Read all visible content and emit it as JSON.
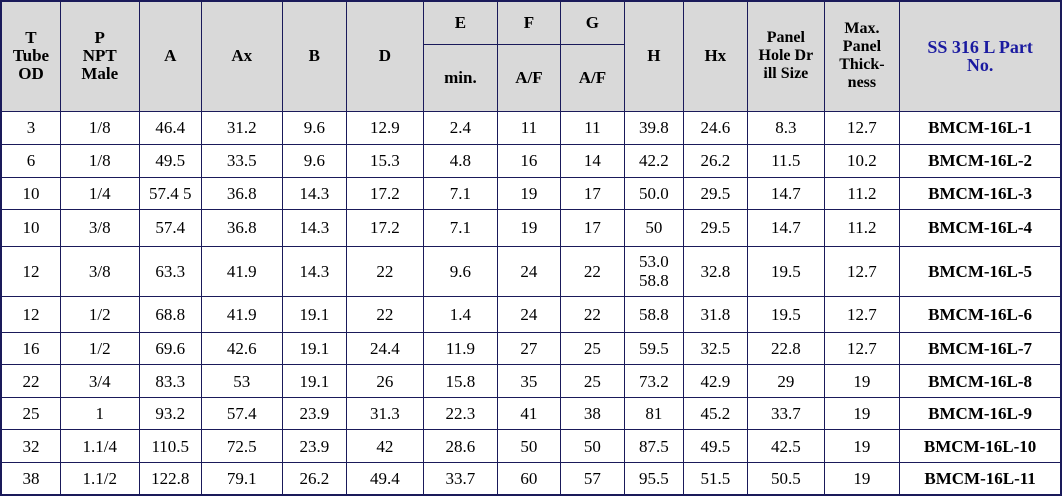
{
  "headers": {
    "t": [
      "T",
      "Tube",
      "OD"
    ],
    "p": [
      "P",
      "NPT",
      "Male"
    ],
    "a": "A",
    "ax": "Ax",
    "b": "B",
    "d": "D",
    "e": "E",
    "e_sub": "min.",
    "f": "F",
    "f_sub": "A/F",
    "g": "G",
    "g_sub": "A/F",
    "h": "H",
    "hx": "Hx",
    "panel_hole": [
      "Panel",
      "Hole Dr",
      "ill Size"
    ],
    "max_panel": [
      "Max.",
      "Panel",
      "Thick-",
      "ness"
    ],
    "part": [
      "SS 316 L Part",
      "No."
    ]
  },
  "rows": [
    {
      "t": "3",
      "p": "1/8",
      "a": "46.4",
      "ax": "31.2",
      "b": "9.6",
      "d": "12.9",
      "e": "2.4",
      "f": "11",
      "g": "11",
      "h": [
        "39.8"
      ],
      "hx": "24.6",
      "hole": "8.3",
      "thick": "12.7",
      "part": "BMCM-16L-1"
    },
    {
      "t": "6",
      "p": "1/8",
      "a": "49.5",
      "ax": "33.5",
      "b": "9.6",
      "d": "15.3",
      "e": "4.8",
      "f": "16",
      "g": "14",
      "h": [
        "42.2"
      ],
      "hx": "26.2",
      "hole": "11.5",
      "thick": "10.2",
      "part": "BMCM-16L-2"
    },
    {
      "t": "10",
      "p": "1/4",
      "a": "57.4 5",
      "ax": "36.8",
      "b": "14.3",
      "d": "17.2",
      "e": "7.1",
      "f": "19",
      "g": "17",
      "h": [
        "50.0"
      ],
      "hx": "29.5",
      "hole": "14.7",
      "thick": "11.2",
      "part": "BMCM-16L-3"
    },
    {
      "t": "10",
      "p": "3/8",
      "a": "57.4",
      "ax": "36.8",
      "b": "14.3",
      "d": "17.2",
      "e": "7.1",
      "f": "19",
      "g": "17",
      "h": [
        "50"
      ],
      "hx": "29.5",
      "hole": "14.7",
      "thick": "11.2",
      "part": "BMCM-16L-4"
    },
    {
      "t": "12",
      "p": "3/8",
      "a": "63.3",
      "ax": "41.9",
      "b": "14.3",
      "d": "22",
      "e": "9.6",
      "f": "24",
      "g": "22",
      "h": [
        "53.0",
        "58.8"
      ],
      "hx": "32.8",
      "hole": "19.5",
      "thick": "12.7",
      "part": "BMCM-16L-5"
    },
    {
      "t": "12",
      "p": "1/2",
      "a": "68.8",
      "ax": "41.9",
      "b": "19.1",
      "d": "22",
      "e": "1.4",
      "f": "24",
      "g": "22",
      "h": [
        "58.8"
      ],
      "hx": "31.8",
      "hole": "19.5",
      "thick": "12.7",
      "part": "BMCM-16L-6"
    },
    {
      "t": "16",
      "p": "1/2",
      "a": "69.6",
      "ax": "42.6",
      "b": "19.1",
      "d": "24.4",
      "e": "11.9",
      "f": "27",
      "g": "25",
      "h": [
        "59.5"
      ],
      "hx": "32.5",
      "hole": "22.8",
      "thick": "12.7",
      "part": "BMCM-16L-7"
    },
    {
      "t": "22",
      "p": "3/4",
      "a": "83.3",
      "ax": "53",
      "b": "19.1",
      "d": "26",
      "e": "15.8",
      "f": "35",
      "g": "25",
      "h": [
        "73.2"
      ],
      "hx": "42.9",
      "hole": "29",
      "thick": "19",
      "part": "BMCM-16L-8"
    },
    {
      "t": "25",
      "p": "1",
      "a": "93.2",
      "ax": "57.4",
      "b": "23.9",
      "d": "31.3",
      "e": "22.3",
      "f": "41",
      "g": "38",
      "h": [
        "81"
      ],
      "hx": "45.2",
      "hole": "33.7",
      "thick": "19",
      "part": "BMCM-16L-9"
    },
    {
      "t": "32",
      "p": "1.1/4",
      "a": "110.5",
      "ax": "72.5",
      "b": "23.9",
      "d": "42",
      "e": "28.6",
      "f": "50",
      "g": "50",
      "h": [
        "87.5"
      ],
      "hx": "49.5",
      "hole": "42.5",
      "thick": "19",
      "part": "BMCM-16L-10"
    },
    {
      "t": "38",
      "p": "1.1/2",
      "a": "122.8",
      "ax": "79.1",
      "b": "26.2",
      "d": "49.4",
      "e": "33.7",
      "f": "60",
      "g": "57",
      "h": [
        "95.5"
      ],
      "hx": "51.5",
      "hole": "50.5",
      "thick": "19",
      "part": "BMCM-16L-11"
    }
  ]
}
